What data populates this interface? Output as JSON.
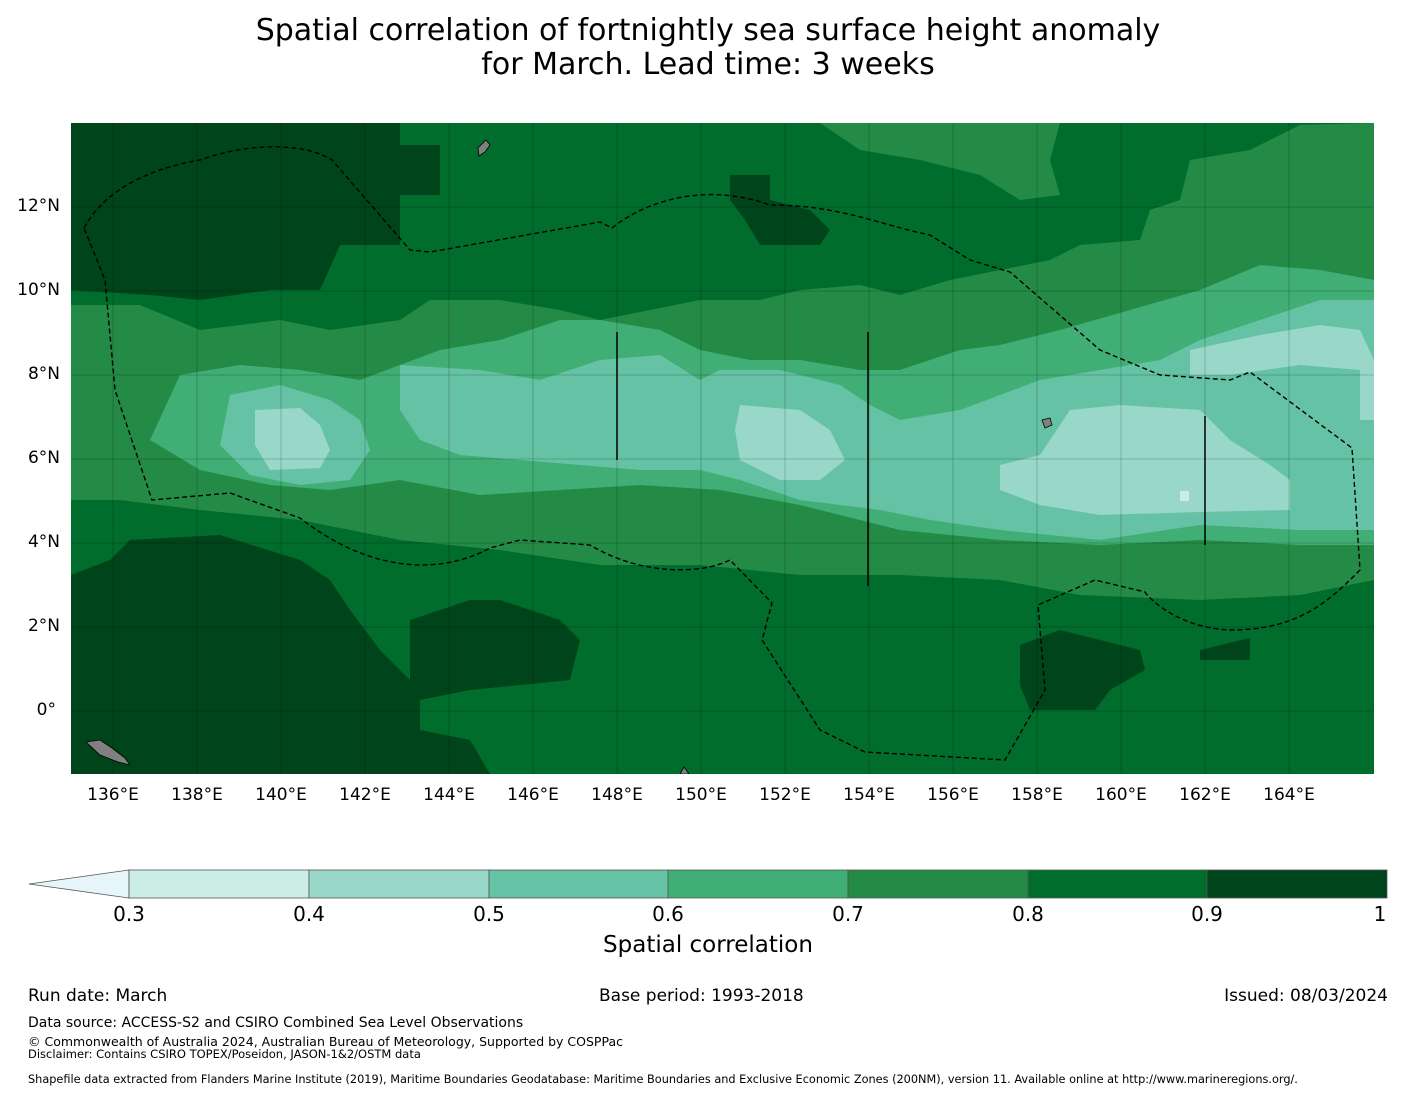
{
  "title": {
    "line1": "Spatial correlation of fortnightly sea surface height anomaly",
    "line2": "for March. Lead time: 3 weeks"
  },
  "map": {
    "lat_labels": [
      "12°N",
      "10°N",
      "8°N",
      "6°N",
      "4°N",
      "2°N",
      "0°"
    ],
    "lon_labels": [
      "136°E",
      "138°E",
      "140°E",
      "142°E",
      "144°E",
      "146°E",
      "148°E",
      "150°E",
      "152°E",
      "154°E",
      "156°E",
      "158°E",
      "160°E",
      "162°E",
      "164°E"
    ],
    "extent": {
      "lon_min": 134.7,
      "lon_max": 165.7,
      "lat_min": -1.5,
      "lat_max": 14.0
    },
    "regions": [
      {
        "name": "high-correlation-background",
        "class": "0.8-0.9"
      },
      {
        "name": "northwest-very-high",
        "class": "0.9-1"
      },
      {
        "name": "southwest-very-high",
        "class": "0.9-1"
      },
      {
        "name": "equatorial-low-band",
        "class": "0.4-0.5"
      }
    ]
  },
  "colorbar": {
    "label": "Spatial correlation",
    "ticks": [
      "0.3",
      "0.4",
      "0.5",
      "0.6",
      "0.7",
      "0.8",
      "0.9",
      "1"
    ],
    "colors": [
      "#ccece6",
      "#99d8c9",
      "#66c2a4",
      "#41ae76",
      "#238b45",
      "#006d2c",
      "#00441b"
    ],
    "under_color": "#e5f5f9",
    "land_color": "#808080"
  },
  "footer": {
    "run_date": "Run date: March",
    "base_period": "Base period: 1993-2018",
    "issued": "Issued: 08/03/2024",
    "data_source": "Data source: ACCESS-S2 and CSIRO Combined Sea Level Observations",
    "copyright": "© Commonwealth of Australia 2024, Australian Bureau of Meteorology, Supported by COSPPac",
    "disclaimer": "Disclaimer: Contains CSIRO TOPEX/Poseidon, JASON-1&2/OSTM data",
    "shapefile": "Shapefile data extracted from Flanders Marine Institute (2019), Maritime Boundaries Geodatabase: Maritime Boundaries and Exclusive Economic Zones (200NM), version 11. Available online at http://www.marineregions.org/."
  }
}
